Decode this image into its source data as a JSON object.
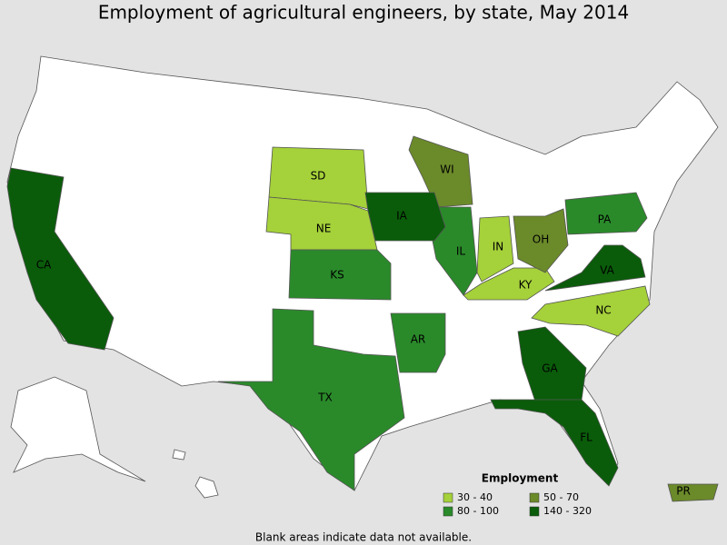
{
  "title": "Employment of agricultural engineers, by state, May 2014",
  "legend": {
    "title": "Employment",
    "items": [
      {
        "label": "30 - 40",
        "color": "#a5d13a",
        "states": [
          "SD",
          "NE",
          "IN",
          "KY",
          "NC"
        ]
      },
      {
        "label": "50 - 70",
        "color": "#6b8a2a",
        "states": [
          "WI",
          "OH",
          "PR"
        ]
      },
      {
        "label": "80 - 100",
        "color": "#2a8a2a",
        "states": [
          "KS",
          "IL",
          "PA",
          "AR",
          "TX"
        ]
      },
      {
        "label": "140 - 320",
        "color": "#0a5c0a",
        "states": [
          "CA",
          "IA",
          "VA",
          "GA",
          "FL"
        ]
      }
    ]
  },
  "footnote": "Blank areas indicate data not available."
}
